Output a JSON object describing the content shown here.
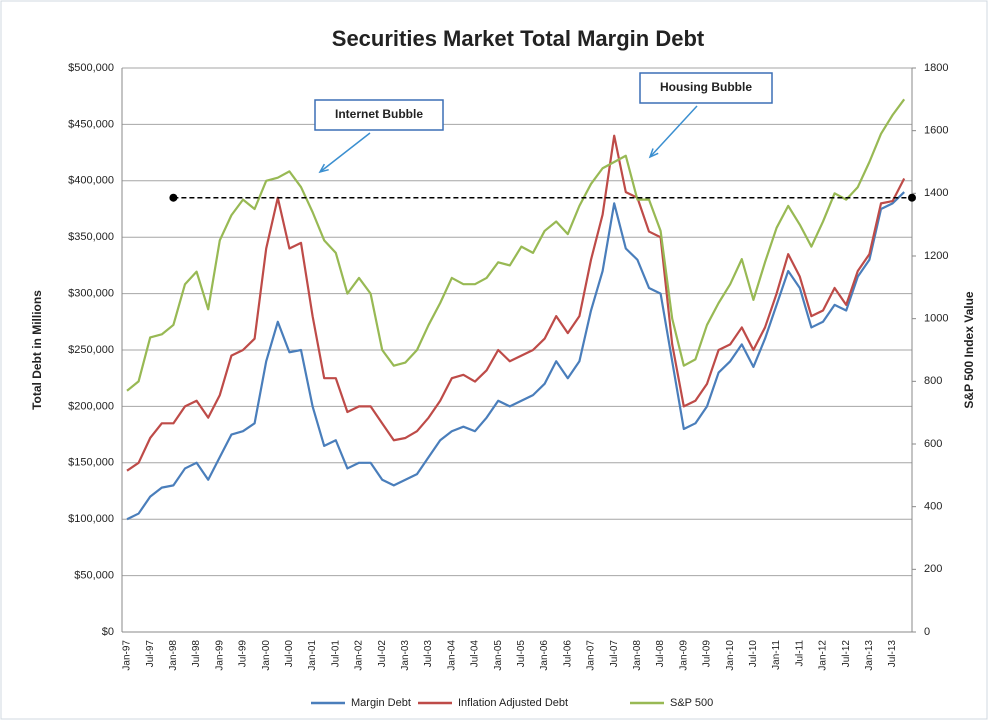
{
  "chart_data": {
    "type": "line",
    "title": "Securities Market Total Margin Debt",
    "y_label": "Total Debt in Millions",
    "y2_label": "S&P 500 Index Value",
    "categories": [
      "Jan-97",
      null,
      "Jul-97",
      null,
      "Jan-98",
      null,
      "Jul-98",
      null,
      "Jan-99",
      null,
      "Jul-99",
      null,
      "Jan-00",
      null,
      "Jul-00",
      null,
      "Jan-01",
      null,
      "Jul-01",
      null,
      "Jan-02",
      null,
      "Jul-02",
      null,
      "Jan-03",
      null,
      "Jul-03",
      null,
      "Jan-04",
      null,
      "Jul-04",
      null,
      "Jan-05",
      null,
      "Jul-05",
      null,
      "Jan-06",
      null,
      "Jul-06",
      null,
      "Jan-07",
      null,
      "Jul-07",
      null,
      "Jan-08",
      null,
      "Jul-08",
      null,
      "Jan-09",
      null,
      "Jul-09",
      null,
      "Jan-10",
      null,
      "Jul-10",
      null,
      "Jan-11",
      null,
      "Jul-11",
      null,
      "Jan-12",
      null,
      "Jul-12",
      null,
      "Jan-13",
      null,
      "Jul-13",
      null
    ],
    "series": [
      {
        "name": "Margin Debt",
        "color": "#4a7ebb",
        "values": [
          100000,
          105000,
          120000,
          128000,
          130000,
          145000,
          150000,
          135000,
          155000,
          175000,
          178000,
          185000,
          240000,
          275000,
          248000,
          250000,
          200000,
          165000,
          170000,
          145000,
          150000,
          150000,
          135000,
          130000,
          135000,
          140000,
          155000,
          170000,
          178000,
          182000,
          178000,
          190000,
          205000,
          200000,
          205000,
          210000,
          220000,
          240000,
          225000,
          240000,
          285000,
          320000,
          380000,
          340000,
          330000,
          305000,
          300000,
          240000,
          180000,
          185000,
          200000,
          230000,
          240000,
          255000,
          235000,
          260000,
          290000,
          320000,
          305000,
          270000,
          275000,
          290000,
          285000,
          315000,
          330000,
          375000,
          380000,
          390000
        ]
      },
      {
        "name": "Inflation Adjusted Debt",
        "color": "#be4b48",
        "values": [
          143000,
          150000,
          172000,
          185000,
          185000,
          200000,
          205000,
          190000,
          210000,
          245000,
          250000,
          260000,
          340000,
          385000,
          340000,
          345000,
          280000,
          225000,
          225000,
          195000,
          200000,
          200000,
          185000,
          170000,
          172000,
          178000,
          190000,
          205000,
          225000,
          228000,
          222000,
          232000,
          250000,
          240000,
          245000,
          250000,
          260000,
          280000,
          265000,
          280000,
          330000,
          370000,
          440000,
          390000,
          385000,
          355000,
          350000,
          255000,
          200000,
          205000,
          220000,
          250000,
          255000,
          270000,
          250000,
          270000,
          300000,
          335000,
          315000,
          280000,
          285000,
          305000,
          290000,
          320000,
          335000,
          380000,
          382000,
          402000
        ]
      },
      {
        "name": "S&P 500",
        "color": "#98b954",
        "axis": "y2",
        "values": [
          770,
          800,
          940,
          950,
          980,
          1110,
          1150,
          1030,
          1250,
          1330,
          1380,
          1350,
          1440,
          1450,
          1470,
          1420,
          1340,
          1250,
          1210,
          1080,
          1130,
          1080,
          900,
          850,
          860,
          900,
          980,
          1050,
          1130,
          1110,
          1110,
          1130,
          1180,
          1170,
          1230,
          1210,
          1280,
          1310,
          1270,
          1360,
          1430,
          1480,
          1500,
          1520,
          1380,
          1380,
          1280,
          1000,
          850,
          870,
          980,
          1050,
          1110,
          1190,
          1060,
          1180,
          1290,
          1360,
          1300,
          1230,
          1310,
          1400,
          1380,
          1420,
          1500,
          1590,
          1650,
          1700
        ]
      }
    ],
    "ylim": [
      0,
      500000
    ],
    "yticks": [
      {
        "value": 0,
        "label": "$0"
      },
      {
        "value": 50000,
        "label": "$50,000"
      },
      {
        "value": 100000,
        "label": "$100,000"
      },
      {
        "value": 150000,
        "label": "$150,000"
      },
      {
        "value": 200000,
        "label": "$200,000"
      },
      {
        "value": 250000,
        "label": "$250,000"
      },
      {
        "value": 300000,
        "label": "$300,000"
      },
      {
        "value": 350000,
        "label": "$350,000"
      },
      {
        "value": 400000,
        "label": "$400,000"
      },
      {
        "value": 450000,
        "label": "$450,000"
      },
      {
        "value": 500000,
        "label": "$500,000"
      }
    ],
    "y2lim": [
      0,
      1800
    ],
    "y2ticks": [
      0,
      200,
      400,
      600,
      800,
      1000,
      1200,
      1400,
      1600,
      1800
    ],
    "grid": true,
    "legend": "bottom",
    "reference_line": {
      "value": 385000,
      "from": "Jan-98"
    },
    "annotations": [
      {
        "text": "Internet Bubble"
      },
      {
        "text": "Housing Bubble"
      }
    ]
  }
}
